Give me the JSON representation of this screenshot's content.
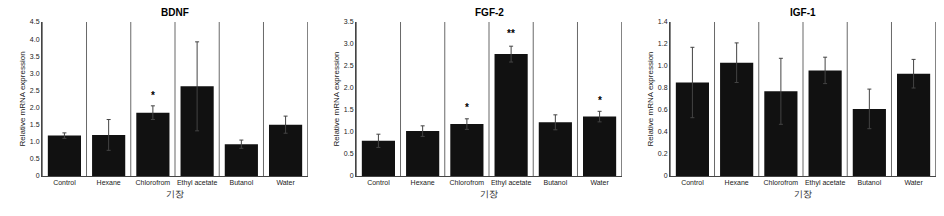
{
  "chart_data": [
    {
      "type": "bar",
      "title": "BDNF",
      "ylabel": "Relative mRNA expression",
      "xlabel": "기장",
      "categories": [
        "Control",
        "Hexane",
        "Chlorofrom",
        "Ethyl acetate",
        "Butanol",
        "Water"
      ],
      "values": [
        1.18,
        1.2,
        1.85,
        2.62,
        0.93,
        1.5
      ],
      "errors": [
        0.08,
        0.45,
        0.2,
        1.3,
        0.12,
        0.25
      ],
      "color": "#111111",
      "ylim": [
        0,
        4.5
      ],
      "yticks": [
        0,
        0.5,
        {
          "value": 1.0,
          "label": "1.0"
        },
        1.5,
        {
          "value": 2.0,
          "label": "2.0"
        },
        2.5,
        {
          "value": 3.0,
          "label": "3.0"
        },
        3.5,
        {
          "value": 4.0,
          "label": "4.0"
        },
        4.5
      ],
      "grid": true,
      "annotations": [
        {
          "x": "Chlorofrom",
          "y": 2.13,
          "text": "*"
        }
      ]
    },
    {
      "type": "bar",
      "title": "FGF-2",
      "ylabel": "Relative mRNA expression",
      "xlabel": "기장",
      "categories": [
        "Control",
        "Hexane",
        "Chlorofrom",
        "Ethyl acetate",
        "Butanol",
        "Water"
      ],
      "values": [
        0.8,
        1.02,
        1.18,
        2.77,
        1.22,
        1.35
      ],
      "errors": [
        0.15,
        0.12,
        0.12,
        0.18,
        0.17,
        0.12
      ],
      "color": "#111111",
      "ylim": [
        0,
        3.5
      ],
      "yticks": [
        0,
        0.5,
        {
          "value": 1.0,
          "label": "1.0"
        },
        1.5,
        {
          "value": 2.0,
          "label": "2.0"
        },
        2.5,
        {
          "value": 3.0,
          "label": "3.0"
        },
        3.5
      ],
      "grid": true,
      "annotations": [
        {
          "x": "Chlorofrom",
          "y": 1.38,
          "text": "*"
        },
        {
          "x": "Ethyl acetate",
          "y": 3.07,
          "text": "**"
        },
        {
          "x": "Water",
          "y": 1.55,
          "text": "*"
        }
      ]
    },
    {
      "type": "bar",
      "title": "IGF-1",
      "ylabel": "Relative mRNA expression",
      "xlabel": "기장",
      "categories": [
        "Control",
        "Hexane",
        "Chlorofrom",
        "Ethyl acetate",
        "Butanol",
        "Water"
      ],
      "values": [
        0.85,
        1.03,
        0.77,
        0.96,
        0.61,
        0.93
      ],
      "errors": [
        0.32,
        0.18,
        0.3,
        0.12,
        0.18,
        0.13
      ],
      "color": "#111111",
      "ylim": [
        0,
        1.4
      ],
      "yticks": [
        0,
        0.2,
        0.4,
        0.6,
        0.8,
        {
          "value": 1.0,
          "label": "1.0"
        },
        1.2,
        1.4
      ],
      "grid": true,
      "annotations": []
    }
  ]
}
